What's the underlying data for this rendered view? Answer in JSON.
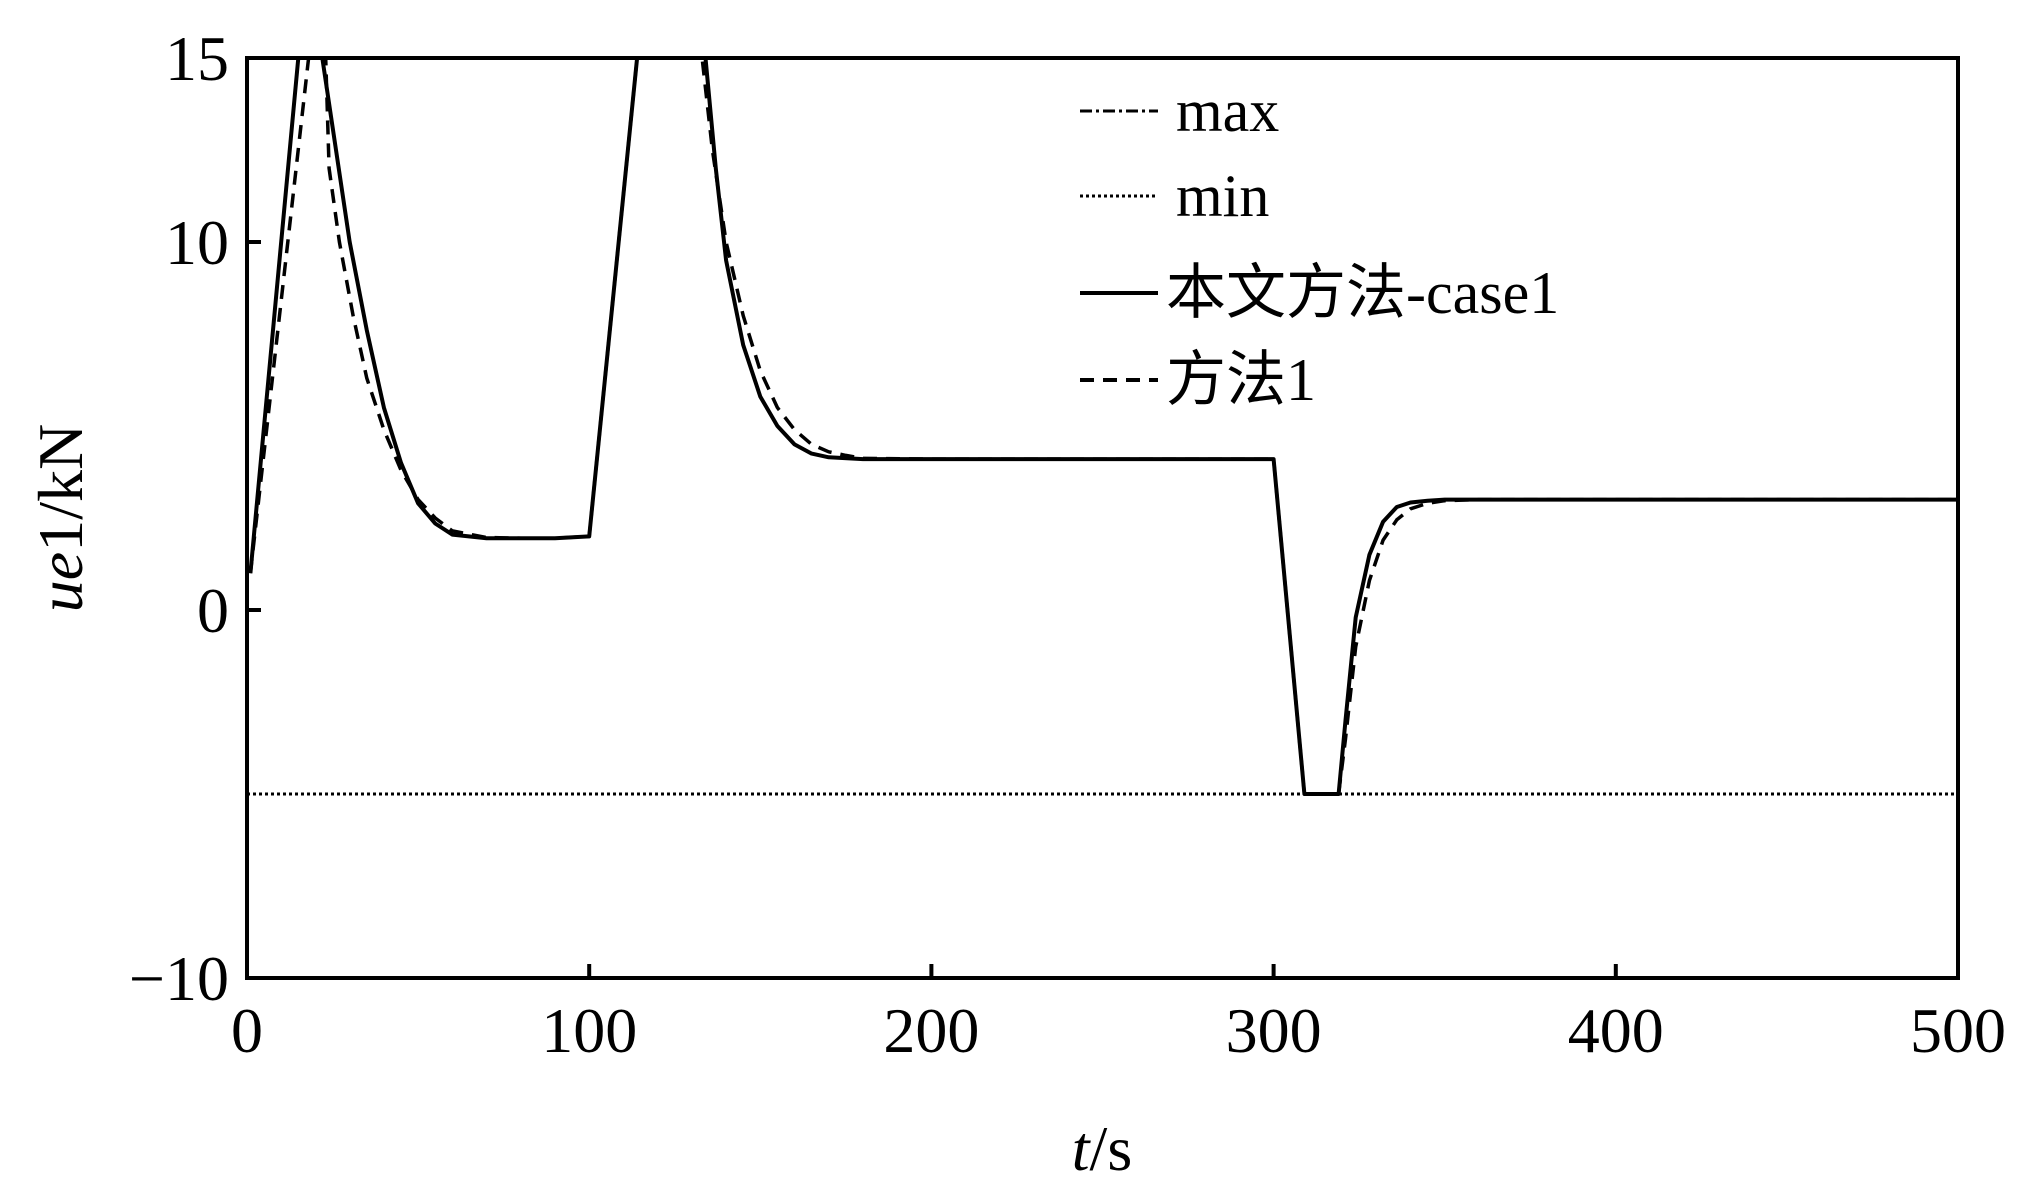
{
  "chart_data": {
    "type": "line",
    "xlabel": {
      "italic": "t",
      "rest": "/s"
    },
    "ylabel": {
      "italic": "ue",
      "rest": "1/kN"
    },
    "xlim": [
      0,
      500
    ],
    "ylim": [
      -10,
      15
    ],
    "xticks": [
      0,
      100,
      200,
      300,
      400,
      500
    ],
    "yticks": [
      -10,
      0,
      10,
      15
    ],
    "ytick_labels": [
      "−10",
      "0",
      "10",
      "15"
    ],
    "grid": false,
    "legend_position": "top-right",
    "series": [
      {
        "name": "max",
        "style": "dashdot",
        "color": "#000000",
        "x": [
          0,
          500
        ],
        "y": [
          15,
          15
        ]
      },
      {
        "name": "min",
        "style": "dotted",
        "color": "#000000",
        "x": [
          0,
          500
        ],
        "y": [
          -5,
          -5
        ]
      },
      {
        "name": "本文方法-case1",
        "style": "solid",
        "color": "#000000",
        "x": [
          1,
          15,
          22,
          26,
          30,
          35,
          40,
          45,
          50,
          55,
          60,
          70,
          80,
          90,
          100,
          114,
          134,
          137,
          140,
          145,
          150,
          155,
          160,
          165,
          170,
          180,
          200,
          250,
          300,
          309,
          319,
          321,
          324,
          328,
          332,
          336,
          340,
          345,
          350,
          360,
          400,
          450,
          500
        ],
        "y": [
          1,
          15,
          15,
          12.5,
          10,
          7.6,
          5.5,
          4.0,
          2.9,
          2.35,
          2.05,
          1.95,
          1.95,
          1.95,
          2.0,
          15,
          15,
          12.0,
          9.5,
          7.2,
          5.8,
          5.0,
          4.5,
          4.25,
          4.15,
          4.1,
          4.1,
          4.1,
          4.1,
          -5,
          -5,
          -3,
          -0.2,
          1.5,
          2.4,
          2.8,
          2.92,
          2.97,
          3.0,
          3.0,
          3.0,
          3.0,
          3.0
        ]
      },
      {
        "name": "方法1",
        "style": "dashed",
        "color": "#000000",
        "x": [
          1,
          18,
          23,
          24,
          27,
          31,
          35,
          40,
          45,
          50,
          55,
          60,
          70,
          80,
          90,
          100,
          114,
          133,
          136,
          140,
          145,
          150,
          155,
          160,
          165,
          170,
          175,
          180,
          200,
          250,
          300,
          309,
          319,
          321,
          324,
          328,
          332,
          336,
          340,
          345,
          350,
          360,
          400,
          450,
          500
        ],
        "y": [
          1,
          15,
          15,
          12.0,
          10.0,
          8.0,
          6.3,
          4.9,
          3.8,
          3.0,
          2.5,
          2.15,
          1.97,
          1.95,
          1.95,
          2.0,
          15,
          15,
          12.5,
          10.0,
          8.0,
          6.5,
          5.5,
          4.9,
          4.5,
          4.3,
          4.2,
          4.12,
          4.1,
          4.1,
          4.1,
          -5,
          -5,
          -3.5,
          -1.0,
          0.8,
          1.9,
          2.45,
          2.75,
          2.9,
          2.97,
          3.0,
          3.0,
          3.0,
          3.0
        ]
      }
    ]
  }
}
